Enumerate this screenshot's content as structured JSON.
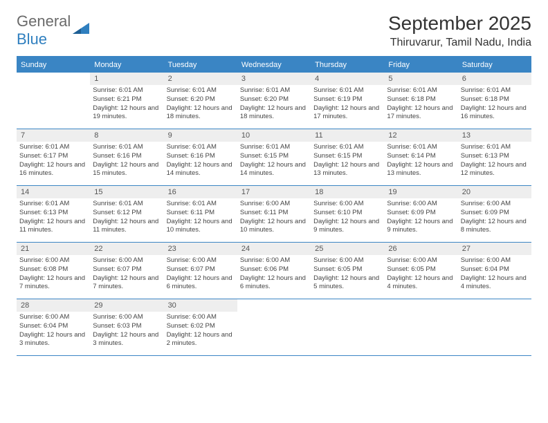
{
  "logo": {
    "text1": "General",
    "text2": "Blue"
  },
  "title": "September 2025",
  "location": "Thiruvarur, Tamil Nadu, India",
  "colors": {
    "header_bg": "#3a85c4",
    "header_text": "#ffffff",
    "daynum_bg": "#eeeeee",
    "border": "#3a85c4",
    "logo_blue": "#2f7fbf",
    "logo_gray": "#6a6a6a"
  },
  "dow": [
    "Sunday",
    "Monday",
    "Tuesday",
    "Wednesday",
    "Thursday",
    "Friday",
    "Saturday"
  ],
  "weeks": [
    [
      null,
      {
        "n": "1",
        "sr": "6:01 AM",
        "ss": "6:21 PM",
        "dl": "12 hours and 19 minutes."
      },
      {
        "n": "2",
        "sr": "6:01 AM",
        "ss": "6:20 PM",
        "dl": "12 hours and 18 minutes."
      },
      {
        "n": "3",
        "sr": "6:01 AM",
        "ss": "6:20 PM",
        "dl": "12 hours and 18 minutes."
      },
      {
        "n": "4",
        "sr": "6:01 AM",
        "ss": "6:19 PM",
        "dl": "12 hours and 17 minutes."
      },
      {
        "n": "5",
        "sr": "6:01 AM",
        "ss": "6:18 PM",
        "dl": "12 hours and 17 minutes."
      },
      {
        "n": "6",
        "sr": "6:01 AM",
        "ss": "6:18 PM",
        "dl": "12 hours and 16 minutes."
      }
    ],
    [
      {
        "n": "7",
        "sr": "6:01 AM",
        "ss": "6:17 PM",
        "dl": "12 hours and 16 minutes."
      },
      {
        "n": "8",
        "sr": "6:01 AM",
        "ss": "6:16 PM",
        "dl": "12 hours and 15 minutes."
      },
      {
        "n": "9",
        "sr": "6:01 AM",
        "ss": "6:16 PM",
        "dl": "12 hours and 14 minutes."
      },
      {
        "n": "10",
        "sr": "6:01 AM",
        "ss": "6:15 PM",
        "dl": "12 hours and 14 minutes."
      },
      {
        "n": "11",
        "sr": "6:01 AM",
        "ss": "6:15 PM",
        "dl": "12 hours and 13 minutes."
      },
      {
        "n": "12",
        "sr": "6:01 AM",
        "ss": "6:14 PM",
        "dl": "12 hours and 13 minutes."
      },
      {
        "n": "13",
        "sr": "6:01 AM",
        "ss": "6:13 PM",
        "dl": "12 hours and 12 minutes."
      }
    ],
    [
      {
        "n": "14",
        "sr": "6:01 AM",
        "ss": "6:13 PM",
        "dl": "12 hours and 11 minutes."
      },
      {
        "n": "15",
        "sr": "6:01 AM",
        "ss": "6:12 PM",
        "dl": "12 hours and 11 minutes."
      },
      {
        "n": "16",
        "sr": "6:01 AM",
        "ss": "6:11 PM",
        "dl": "12 hours and 10 minutes."
      },
      {
        "n": "17",
        "sr": "6:00 AM",
        "ss": "6:11 PM",
        "dl": "12 hours and 10 minutes."
      },
      {
        "n": "18",
        "sr": "6:00 AM",
        "ss": "6:10 PM",
        "dl": "12 hours and 9 minutes."
      },
      {
        "n": "19",
        "sr": "6:00 AM",
        "ss": "6:09 PM",
        "dl": "12 hours and 9 minutes."
      },
      {
        "n": "20",
        "sr": "6:00 AM",
        "ss": "6:09 PM",
        "dl": "12 hours and 8 minutes."
      }
    ],
    [
      {
        "n": "21",
        "sr": "6:00 AM",
        "ss": "6:08 PM",
        "dl": "12 hours and 7 minutes."
      },
      {
        "n": "22",
        "sr": "6:00 AM",
        "ss": "6:07 PM",
        "dl": "12 hours and 7 minutes."
      },
      {
        "n": "23",
        "sr": "6:00 AM",
        "ss": "6:07 PM",
        "dl": "12 hours and 6 minutes."
      },
      {
        "n": "24",
        "sr": "6:00 AM",
        "ss": "6:06 PM",
        "dl": "12 hours and 6 minutes."
      },
      {
        "n": "25",
        "sr": "6:00 AM",
        "ss": "6:05 PM",
        "dl": "12 hours and 5 minutes."
      },
      {
        "n": "26",
        "sr": "6:00 AM",
        "ss": "6:05 PM",
        "dl": "12 hours and 4 minutes."
      },
      {
        "n": "27",
        "sr": "6:00 AM",
        "ss": "6:04 PM",
        "dl": "12 hours and 4 minutes."
      }
    ],
    [
      {
        "n": "28",
        "sr": "6:00 AM",
        "ss": "6:04 PM",
        "dl": "12 hours and 3 minutes."
      },
      {
        "n": "29",
        "sr": "6:00 AM",
        "ss": "6:03 PM",
        "dl": "12 hours and 3 minutes."
      },
      {
        "n": "30",
        "sr": "6:00 AM",
        "ss": "6:02 PM",
        "dl": "12 hours and 2 minutes."
      },
      null,
      null,
      null,
      null
    ]
  ],
  "labels": {
    "sunrise": "Sunrise:",
    "sunset": "Sunset:",
    "daylight": "Daylight:"
  }
}
